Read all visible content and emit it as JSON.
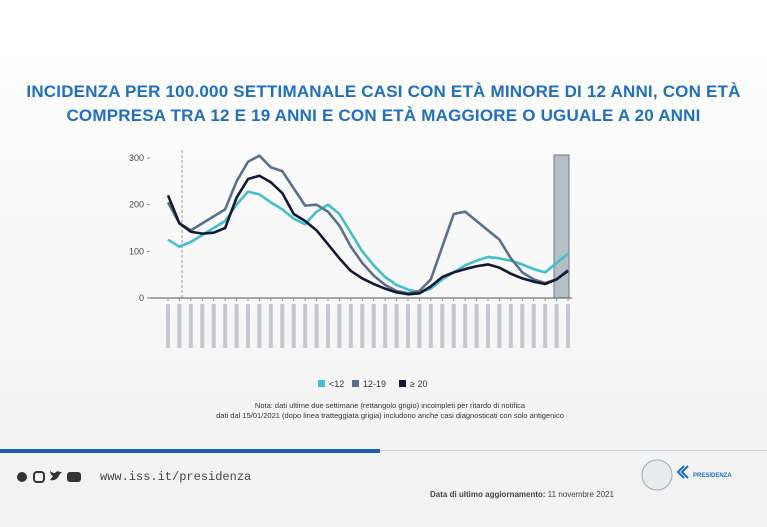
{
  "header": {
    "title": [
      "INCIDENZA PER 100.000 SETTIMANALE CASI CON ETÀ MINORE DI 12 ANNI, CON ETÀ",
      "COMPRESA TRA 12 E 19 ANNI  E CON ETÀ MAGGIORE O UGUALE A 20 ANNI"
    ]
  },
  "chart_data": {
    "type": "line",
    "categories": [
      null,
      null,
      null,
      null,
      null,
      null,
      null,
      null,
      null,
      null,
      null,
      null,
      null,
      null,
      null,
      null,
      null,
      null,
      null,
      null,
      null,
      null,
      null,
      null,
      null,
      null,
      null,
      null,
      null,
      null,
      null,
      null,
      null,
      null,
      null,
      null
    ],
    "series": [
      {
        "name": "<12",
        "color": "#3fbfcf",
        "values": [
          125,
          110,
          120,
          135,
          150,
          165,
          200,
          228,
          222,
          205,
          190,
          170,
          158,
          185,
          200,
          180,
          140,
          100,
          70,
          45,
          28,
          18,
          12,
          20,
          40,
          55,
          70,
          80,
          88,
          85,
          80,
          72,
          62,
          55,
          75,
          95
        ]
      },
      {
        "name": "12-19",
        "color": "#5b6f8e",
        "values": [
          205,
          160,
          145,
          160,
          175,
          190,
          250,
          292,
          305,
          280,
          272,
          235,
          198,
          200,
          185,
          155,
          110,
          75,
          48,
          28,
          15,
          10,
          15,
          40,
          110,
          180,
          185,
          165,
          145,
          125,
          85,
          55,
          40,
          32,
          40,
          60
        ]
      },
      {
        "name": "≥ 20",
        "color": "#141a33",
        "values": [
          220,
          160,
          142,
          138,
          140,
          150,
          215,
          255,
          262,
          248,
          225,
          180,
          165,
          145,
          115,
          85,
          58,
          42,
          30,
          20,
          12,
          8,
          10,
          25,
          45,
          55,
          62,
          68,
          72,
          65,
          52,
          42,
          35,
          30,
          40,
          58
        ]
      }
    ],
    "ylim": [
      0,
      320
    ],
    "yticks": [
      0,
      100,
      200,
      300
    ]
  },
  "note": [
    "Nota: dati ultime due settimane (rettangolo grigio) incompleti per ritardo di notifica",
    "dati dal 15/01/2021 (dopo linea tratteggiata grigia) includono anche casi diagnosticati con solo antigenico"
  ],
  "footer": {
    "url": "www.iss.it/presidenza",
    "update_label": "Data di ultimo aggiornamento:",
    "update_date": "11 novembre 2021",
    "logo_text": "PRESIDENZA"
  }
}
